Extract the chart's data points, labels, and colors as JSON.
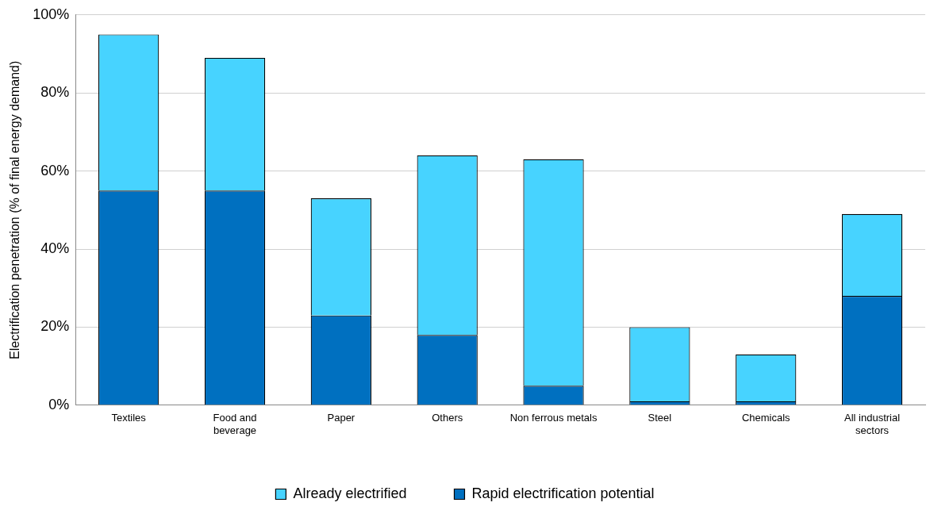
{
  "chart_data": {
    "type": "bar",
    "stacked": true,
    "ylabel": "Electrification penetration (% of final energy demand)",
    "categories": [
      "Textiles",
      "Food and\nbeverage",
      "Paper",
      "Others",
      "Non ferrous metals",
      "Steel",
      "Chemicals",
      "All industrial\nsectors"
    ],
    "series": [
      {
        "name": "Rapid electrification potential",
        "color": "#0070c0",
        "values": [
          55,
          55,
          23,
          18,
          5,
          1,
          1,
          28
        ]
      },
      {
        "name": "Already electrified",
        "color": "#47d3ff",
        "values": [
          40,
          34,
          30,
          46,
          58,
          19,
          12,
          21
        ]
      }
    ],
    "ylim": [
      0,
      100
    ],
    "yticks": [
      {
        "value": 0,
        "label": "0%"
      },
      {
        "value": 20,
        "label": "20%"
      },
      {
        "value": 40,
        "label": "40%"
      },
      {
        "value": 60,
        "label": "60%"
      },
      {
        "value": 80,
        "label": "80%"
      },
      {
        "value": 100,
        "label": "100%"
      }
    ],
    "grid": "y",
    "legend": "bottom"
  }
}
